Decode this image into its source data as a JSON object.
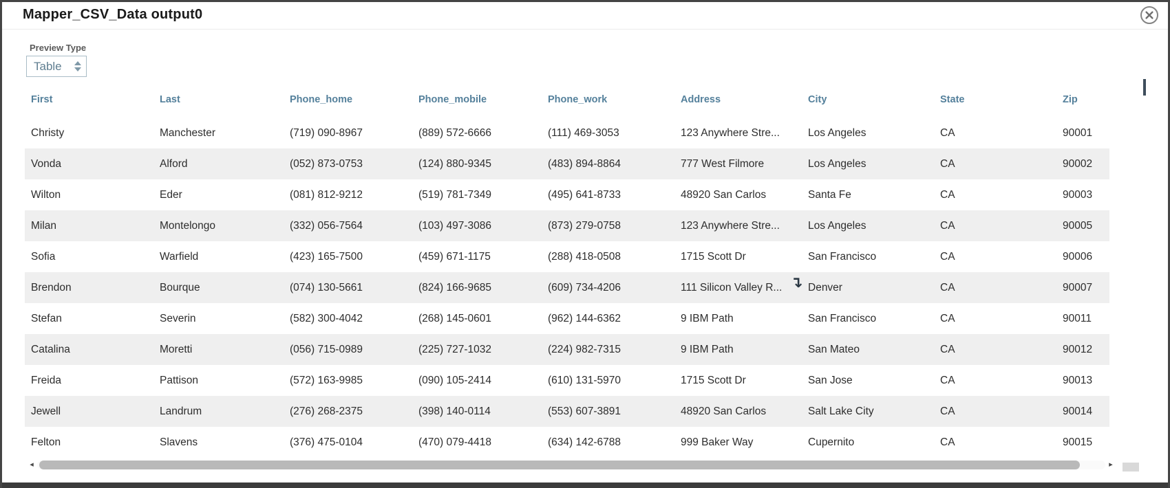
{
  "dialog": {
    "title": "Mapper_CSV_Data output0"
  },
  "controls": {
    "preview_type_label": "Preview Type",
    "preview_type_value": "Table"
  },
  "table": {
    "columns": [
      "First",
      "Last",
      "Phone_home",
      "Phone_mobile",
      "Phone_work",
      "Address",
      "City",
      "State",
      "Zip"
    ],
    "rows": [
      [
        "Christy",
        "Manchester",
        "(719) 090-8967",
        "(889) 572-6666",
        "(111) 469-3053",
        "123 Anywhere Stre...",
        "Los Angeles",
        "CA",
        "90001"
      ],
      [
        "Vonda",
        "Alford",
        "(052) 873-0753",
        "(124) 880-9345",
        "(483) 894-8864",
        "777 West Filmore",
        "Los Angeles",
        "CA",
        "90002"
      ],
      [
        "Wilton",
        "Eder",
        "(081) 812-9212",
        "(519) 781-7349",
        "(495) 641-8733",
        "48920 San Carlos",
        "Santa Fe",
        "CA",
        "90003"
      ],
      [
        "Milan",
        "Montelongo",
        "(332) 056-7564",
        "(103) 497-3086",
        "(873) 279-0758",
        "123 Anywhere Stre...",
        "Los Angeles",
        "CA",
        "90005"
      ],
      [
        "Sofia",
        "Warfield",
        "(423) 165-7500",
        "(459) 671-1175",
        "(288) 418-0508",
        "1715 Scott Dr",
        "San Francisco",
        "CA",
        "90006"
      ],
      [
        "Brendon",
        "Bourque",
        "(074) 130-5661",
        "(824) 166-9685",
        "(609) 734-4206",
        "111 Silicon Valley R...",
        "Denver",
        "CA",
        "90007"
      ],
      [
        "Stefan",
        "Severin",
        "(582) 300-4042",
        "(268) 145-0601",
        "(962) 144-6362",
        "9 IBM Path",
        "San Francisco",
        "CA",
        "90011"
      ],
      [
        "Catalina",
        "Moretti",
        "(056) 715-0989",
        "(225) 727-1032",
        "(224) 982-7315",
        "9 IBM Path",
        "San Mateo",
        "CA",
        "90012"
      ],
      [
        "Freida",
        "Pattison",
        "(572) 163-9985",
        "(090) 105-2414",
        "(610) 131-5970",
        "1715 Scott Dr",
        "San Jose",
        "CA",
        "90013"
      ],
      [
        "Jewell",
        "Landrum",
        "(276) 268-2375",
        "(398) 140-0114",
        "(553) 607-3891",
        "48920 San Carlos",
        "Salt Lake City",
        "CA",
        "90014"
      ],
      [
        "Felton",
        "Slavens",
        "(376) 475-0104",
        "(470) 079-4418",
        "(634) 142-6788",
        "999 Baker Way",
        "Cupernito",
        "CA",
        "90015"
      ]
    ]
  },
  "icons": {
    "close": "circle-x",
    "select_spinner": "up-down-spinner",
    "cursor_glyph": "↴",
    "scroll_left_glyph": "◂",
    "scroll_right_glyph": "▸"
  },
  "colors": {
    "header_text": "#54809b",
    "body_text": "#2d2d2d",
    "zebra_stripe": "#efefef",
    "select_text": "#5f7e90",
    "select_border": "#a9bcc6",
    "label_text": "#5a5a5a",
    "frame": "#454545",
    "scroll_thumb": "#b9b9b9",
    "vertical_thumb": "#3f4e5c",
    "title_text": "#1a1a1a",
    "close_gray": "#7f7f7f"
  }
}
